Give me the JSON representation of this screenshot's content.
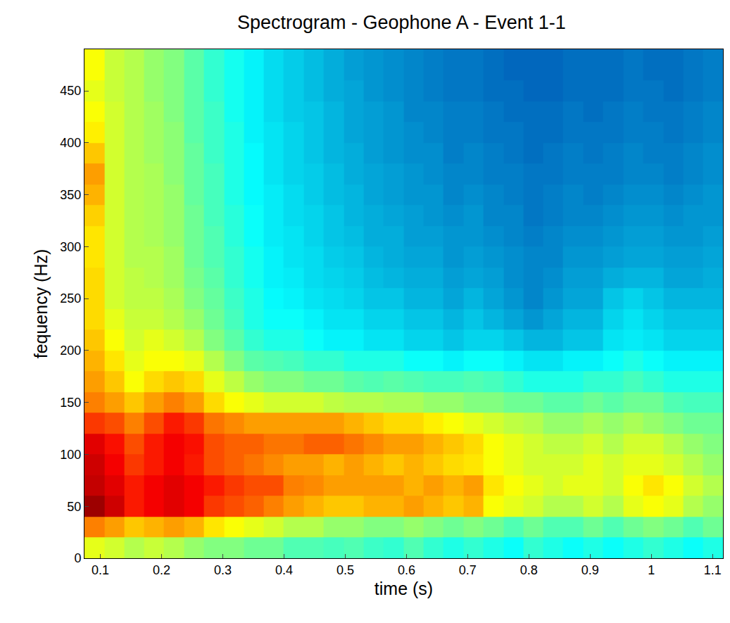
{
  "chart_data": {
    "type": "heatmap",
    "title": "Spectrogram - Geophone A - Event 1-1",
    "x_label": "time (s)",
    "y_label": "fequency (Hz)",
    "xlim": [
      0.074,
      1.117
    ],
    "ylim": [
      0,
      490
    ],
    "xticks": [
      0.1,
      0.2,
      0.3,
      0.4,
      0.5,
      0.6,
      0.7,
      0.8,
      0.9,
      1,
      1.1
    ],
    "yticks": [
      0,
      50,
      100,
      150,
      200,
      250,
      300,
      350,
      400,
      450
    ],
    "x": [
      0.09,
      0.123,
      0.155,
      0.188,
      0.22,
      0.253,
      0.286,
      0.318,
      0.351,
      0.383,
      0.416,
      0.449,
      0.481,
      0.514,
      0.546,
      0.579,
      0.612,
      0.644,
      0.677,
      0.709,
      0.742,
      0.775,
      0.807,
      0.84,
      0.872,
      0.905,
      0.938,
      0.97,
      1.003,
      1.036,
      1.068,
      1.101
    ],
    "y": [
      10,
      30,
      50,
      70,
      90,
      110,
      130,
      150,
      170,
      190,
      210,
      230,
      250,
      270,
      290,
      310,
      330,
      350,
      370,
      390,
      410,
      430,
      450,
      470,
      490
    ],
    "zlim": [
      0,
      100
    ],
    "z": [
      [
        60,
        58,
        55,
        57,
        55,
        52,
        50,
        50,
        48,
        48,
        45,
        45,
        44,
        45,
        43,
        42,
        45,
        42,
        40,
        42,
        40,
        38,
        42,
        40,
        38,
        40,
        38,
        40,
        42,
        40,
        38,
        40
      ],
      [
        75,
        72,
        68,
        70,
        72,
        70,
        65,
        62,
        60,
        58,
        55,
        55,
        52,
        52,
        50,
        50,
        52,
        50,
        48,
        50,
        48,
        45,
        48,
        45,
        45,
        48,
        45,
        48,
        50,
        48,
        45,
        48
      ],
      [
        97,
        92,
        85,
        88,
        90,
        88,
        82,
        80,
        78,
        75,
        72,
        70,
        68,
        68,
        70,
        70,
        72,
        70,
        68,
        70,
        62,
        60,
        58,
        55,
        55,
        58,
        55,
        60,
        62,
        60,
        55,
        52
      ],
      [
        93,
        90,
        85,
        88,
        90,
        88,
        85,
        82,
        80,
        80,
        75,
        74,
        72,
        72,
        72,
        72,
        70,
        72,
        70,
        72,
        65,
        62,
        60,
        58,
        60,
        60,
        58,
        62,
        65,
        62,
        58,
        55
      ],
      [
        92,
        88,
        82,
        85,
        88,
        85,
        80,
        78,
        76,
        74,
        72,
        72,
        70,
        72,
        70,
        68,
        70,
        68,
        66,
        65,
        62,
        60,
        58,
        58,
        58,
        60,
        58,
        60,
        60,
        58,
        55,
        52
      ],
      [
        90,
        86,
        80,
        85,
        88,
        86,
        80,
        78,
        78,
        76,
        76,
        78,
        78,
        76,
        74,
        72,
        72,
        70,
        68,
        66,
        62,
        60,
        58,
        56,
        56,
        58,
        55,
        58,
        58,
        55,
        52,
        50
      ],
      [
        82,
        80,
        75,
        80,
        85,
        82,
        76,
        74,
        72,
        72,
        72,
        72,
        72,
        70,
        68,
        66,
        66,
        64,
        62,
        60,
        58,
        56,
        55,
        52,
        52,
        54,
        52,
        54,
        52,
        50,
        48,
        48
      ],
      [
        75,
        72,
        68,
        72,
        75,
        72,
        66,
        62,
        60,
        58,
        58,
        58,
        56,
        55,
        55,
        54,
        54,
        52,
        52,
        50,
        50,
        48,
        48,
        46,
        46,
        48,
        46,
        48,
        48,
        45,
        44,
        44
      ],
      [
        72,
        68,
        62,
        66,
        68,
        66,
        60,
        56,
        52,
        50,
        50,
        48,
        48,
        46,
        45,
        46,
        45,
        44,
        44,
        45,
        44,
        42,
        40,
        40,
        40,
        42,
        42,
        44,
        42,
        40,
        40,
        40
      ],
      [
        70,
        65,
        60,
        62,
        62,
        60,
        55,
        50,
        46,
        45,
        44,
        42,
        42,
        40,
        40,
        40,
        38,
        38,
        36,
        38,
        38,
        36,
        34,
        34,
        36,
        36,
        38,
        40,
        38,
        36,
        36,
        36
      ],
      [
        68,
        62,
        58,
        60,
        58,
        55,
        50,
        46,
        42,
        40,
        40,
        38,
        36,
        36,
        34,
        34,
        32,
        32,
        30,
        32,
        32,
        30,
        28,
        28,
        30,
        30,
        34,
        35,
        34,
        32,
        32,
        32
      ],
      [
        66,
        60,
        57,
        57,
        55,
        52,
        48,
        44,
        40,
        38,
        38,
        36,
        34,
        34,
        32,
        32,
        30,
        30,
        28,
        30,
        28,
        26,
        24,
        26,
        28,
        28,
        32,
        34,
        32,
        30,
        30,
        30
      ],
      [
        66,
        58,
        56,
        56,
        54,
        50,
        47,
        43,
        40,
        37,
        36,
        34,
        33,
        32,
        30,
        30,
        28,
        28,
        26,
        28,
        26,
        24,
        22,
        24,
        26,
        26,
        30,
        32,
        30,
        28,
        28,
        28
      ],
      [
        66,
        58,
        56,
        55,
        53,
        49,
        46,
        42,
        39,
        36,
        35,
        33,
        32,
        31,
        29,
        28,
        27,
        27,
        25,
        26,
        25,
        23,
        22,
        23,
        25,
        25,
        27,
        28,
        28,
        26,
        26,
        27
      ],
      [
        65,
        58,
        55,
        55,
        53,
        48,
        45,
        42,
        39,
        36,
        34,
        33,
        31,
        30,
        28,
        27,
        26,
        26,
        24,
        25,
        24,
        23,
        22,
        22,
        24,
        24,
        25,
        26,
        26,
        25,
        25,
        26
      ],
      [
        65,
        58,
        55,
        54,
        52,
        48,
        45,
        41,
        38,
        35,
        34,
        32,
        30,
        29,
        27,
        27,
        25,
        25,
        24,
        24,
        23,
        22,
        21,
        22,
        23,
        23,
        24,
        25,
        25,
        24,
        24,
        25
      ],
      [
        67,
        58,
        55,
        54,
        52,
        48,
        44,
        41,
        38,
        35,
        33,
        32,
        30,
        28,
        27,
        26,
        25,
        24,
        23,
        24,
        22,
        22,
        20,
        21,
        22,
        22,
        23,
        24,
        24,
        23,
        24,
        24
      ],
      [
        70,
        58,
        55,
        54,
        52,
        47,
        44,
        40,
        37,
        35,
        33,
        31,
        29,
        28,
        26,
        25,
        24,
        24,
        22,
        23,
        22,
        21,
        20,
        21,
        22,
        21,
        22,
        23,
        23,
        22,
        23,
        24
      ],
      [
        72,
        58,
        55,
        54,
        51,
        47,
        44,
        40,
        37,
        34,
        32,
        31,
        29,
        27,
        26,
        25,
        24,
        23,
        22,
        22,
        21,
        21,
        20,
        20,
        21,
        21,
        21,
        22,
        22,
        21,
        22,
        23
      ],
      [
        68,
        58,
        55,
        53,
        51,
        47,
        43,
        40,
        37,
        34,
        32,
        30,
        28,
        27,
        25,
        24,
        23,
        23,
        21,
        22,
        21,
        20,
        19,
        20,
        21,
        20,
        21,
        22,
        21,
        21,
        22,
        23
      ],
      [
        64,
        58,
        55,
        53,
        51,
        46,
        43,
        40,
        36,
        34,
        32,
        30,
        28,
        26,
        25,
        24,
        23,
        22,
        21,
        21,
        20,
        20,
        19,
        19,
        20,
        20,
        20,
        21,
        21,
        20,
        21,
        22
      ],
      [
        62,
        58,
        55,
        53,
        50,
        46,
        43,
        39,
        36,
        33,
        31,
        30,
        28,
        26,
        25,
        24,
        22,
        22,
        21,
        21,
        20,
        19,
        19,
        19,
        20,
        19,
        20,
        21,
        20,
        20,
        21,
        22
      ],
      [
        60,
        57,
        55,
        52,
        50,
        46,
        42,
        39,
        36,
        33,
        31,
        29,
        27,
        26,
        24,
        23,
        22,
        21,
        20,
        20,
        19,
        19,
        18,
        18,
        19,
        19,
        19,
        20,
        20,
        19,
        20,
        21
      ],
      [
        62,
        57,
        55,
        52,
        50,
        46,
        42,
        39,
        36,
        33,
        31,
        29,
        27,
        25,
        24,
        23,
        22,
        21,
        20,
        20,
        19,
        18,
        18,
        18,
        19,
        19,
        19,
        20,
        19,
        19,
        20,
        21
      ],
      [
        62,
        57,
        55,
        52,
        50,
        46,
        42,
        39,
        36,
        33,
        31,
        29,
        27,
        25,
        24,
        23,
        22,
        21,
        20,
        20,
        19,
        18,
        18,
        18,
        19,
        19,
        19,
        20,
        19,
        19,
        20,
        21
      ]
    ]
  }
}
